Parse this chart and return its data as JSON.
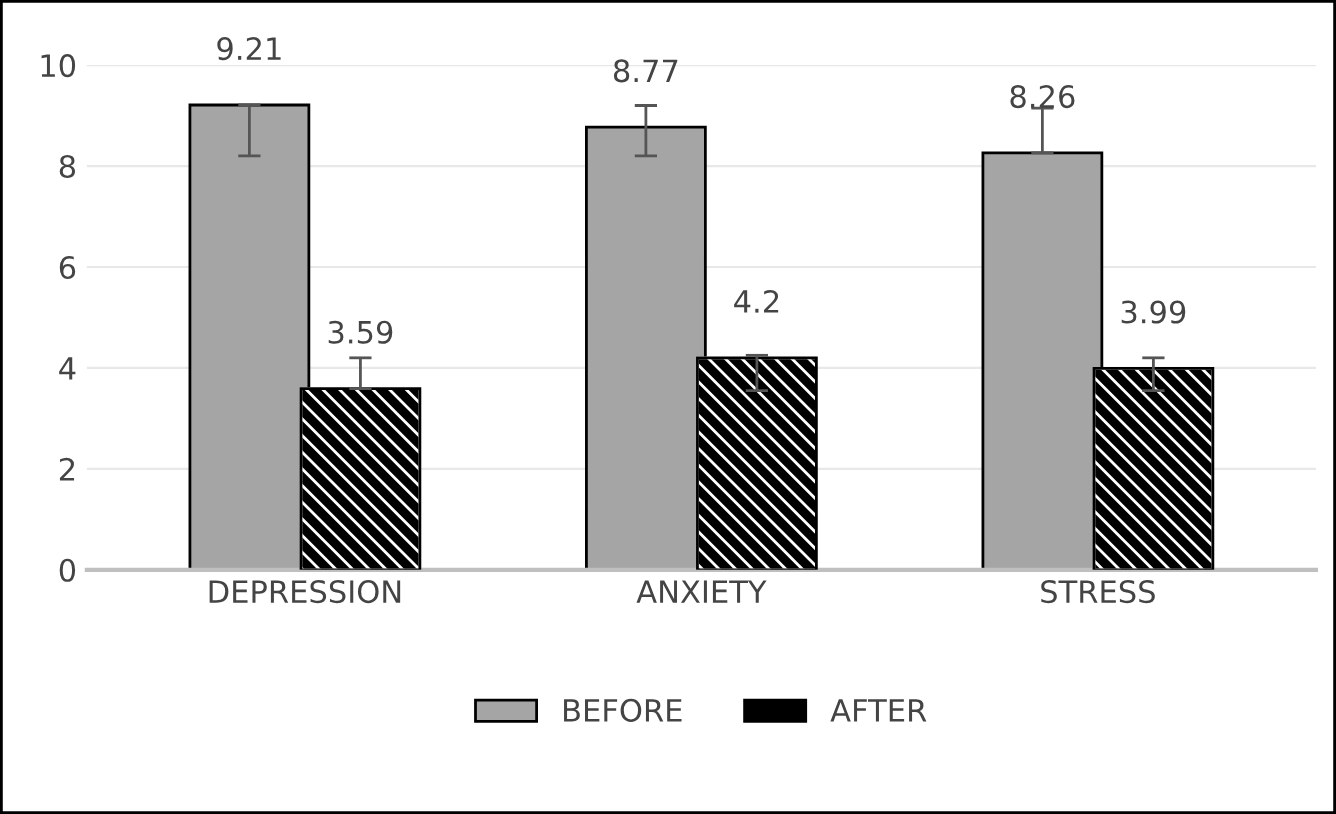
{
  "chart_data": {
    "type": "bar",
    "categories": [
      "DEPRESSION",
      "ANXIETY",
      "STRESS"
    ],
    "series": [
      {
        "name": "BEFORE",
        "color": "#a5a5a5",
        "values": [
          9.21,
          8.77,
          8.26
        ],
        "errors": [
          [
            8.2,
            9.21
          ],
          [
            8.2,
            9.2
          ],
          [
            8.26,
            9.15
          ]
        ]
      },
      {
        "name": "AFTER",
        "color": "#000000",
        "values": [
          3.59,
          4.2,
          3.99
        ],
        "errors": [
          [
            3.59,
            4.2
          ],
          [
            3.55,
            4.25
          ],
          [
            3.55,
            4.2
          ]
        ]
      }
    ],
    "ylim": [
      0,
      10
    ],
    "yticks": [
      0,
      2,
      4,
      6,
      8,
      10
    ],
    "grid": "y",
    "legend": "bottom",
    "data_labels": true
  }
}
